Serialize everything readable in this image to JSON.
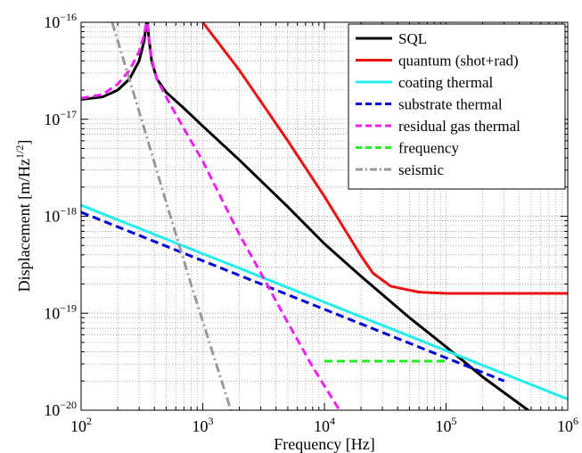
{
  "chart_data": {
    "type": "line",
    "xlabel": "Frequency [Hz]",
    "ylabel_main": "Displacement [m/Hz",
    "ylabel_exp": "1/2",
    "ylabel_close": "]",
    "xscale": "log",
    "yscale": "log",
    "xlim": [
      100,
      1000000
    ],
    "ylim": [
      1e-20,
      1e-16
    ],
    "grid": true,
    "legend_position": "top-right",
    "x_ticks": [
      {
        "base": "10",
        "exp": "2"
      },
      {
        "base": "10",
        "exp": "3"
      },
      {
        "base": "10",
        "exp": "4"
      },
      {
        "base": "10",
        "exp": "5"
      },
      {
        "base": "10",
        "exp": "6"
      }
    ],
    "y_ticks": [
      {
        "base": "10",
        "exp": "−20"
      },
      {
        "base": "10",
        "exp": "−19"
      },
      {
        "base": "10",
        "exp": "−18"
      },
      {
        "base": "10",
        "exp": "−17"
      },
      {
        "base": "10",
        "exp": "−16"
      }
    ],
    "series": [
      {
        "name": "SQL",
        "color": "#000000",
        "dash": "solid",
        "x": [
          100,
          150,
          200,
          250,
          300,
          330,
          345,
          352,
          360,
          380,
          420,
          500,
          700,
          1000,
          2000,
          5000,
          10000,
          20000,
          50000,
          100000,
          200000,
          500000
        ],
        "y": [
          1.6e-17,
          1.7e-17,
          2e-17,
          2.6e-17,
          4e-17,
          6.5e-17,
          1e-16,
          1e-16,
          7e-17,
          4e-17,
          2.6e-17,
          1.9e-17,
          1.3e-17,
          8.5e-18,
          3.8e-18,
          1.25e-18,
          5.2e-19,
          2.4e-19,
          9e-20,
          4.5e-20,
          2.2e-20,
          9.5e-21
        ]
      },
      {
        "name": "quantum (shot+rad)",
        "color": "#ee1111",
        "dash": "solid",
        "x": [
          1000,
          2000,
          5000,
          10000,
          15000,
          20000,
          25000,
          35000,
          60000,
          100000,
          1000000
        ],
        "y": [
          1e-16,
          3.2e-17,
          6e-18,
          1.6e-18,
          7e-19,
          3.9e-19,
          2.6e-19,
          1.9e-19,
          1.65e-19,
          1.6e-19,
          1.6e-19
        ]
      },
      {
        "name": "coating thermal",
        "color": "#22eeee",
        "dash": "solid",
        "x": [
          100,
          1000000
        ],
        "y": [
          1.3e-18,
          1.3e-20
        ]
      },
      {
        "name": "substrate thermal",
        "color": "#0000dd",
        "dash": "dashed",
        "x": [
          100,
          300000
        ],
        "y": [
          1.1e-18,
          2e-20
        ]
      },
      {
        "name": "residual gas thermal",
        "color": "#ee22ee",
        "dash": "dashed",
        "x": [
          100,
          150,
          200,
          250,
          300,
          330,
          345,
          352,
          360,
          380,
          420,
          500,
          700,
          1000,
          2000,
          3000,
          5000,
          8000,
          14000
        ],
        "y": [
          1.65e-17,
          1.8e-17,
          2.3e-17,
          3.2e-17,
          5e-17,
          7.5e-17,
          1e-16,
          1e-16,
          7e-17,
          4.2e-17,
          2.6e-17,
          1.7e-17,
          8e-18,
          3.7e-18,
          6.5e-19,
          2.6e-19,
          8e-20,
          2.8e-20,
          9e-21
        ]
      },
      {
        "name": "frequency",
        "color": "#22ee22",
        "dash": "dashed",
        "x": [
          10000,
          100000
        ],
        "y": [
          3.2e-20,
          3.2e-20
        ]
      },
      {
        "name": "seismic",
        "color": "#999999",
        "dash": "dashdot",
        "x": [
          180,
          300,
          500,
          800,
          1200,
          1800
        ],
        "y": [
          1e-16,
          1.2e-17,
          1.4e-18,
          2e-19,
          4e-20,
          8e-21
        ]
      }
    ]
  }
}
